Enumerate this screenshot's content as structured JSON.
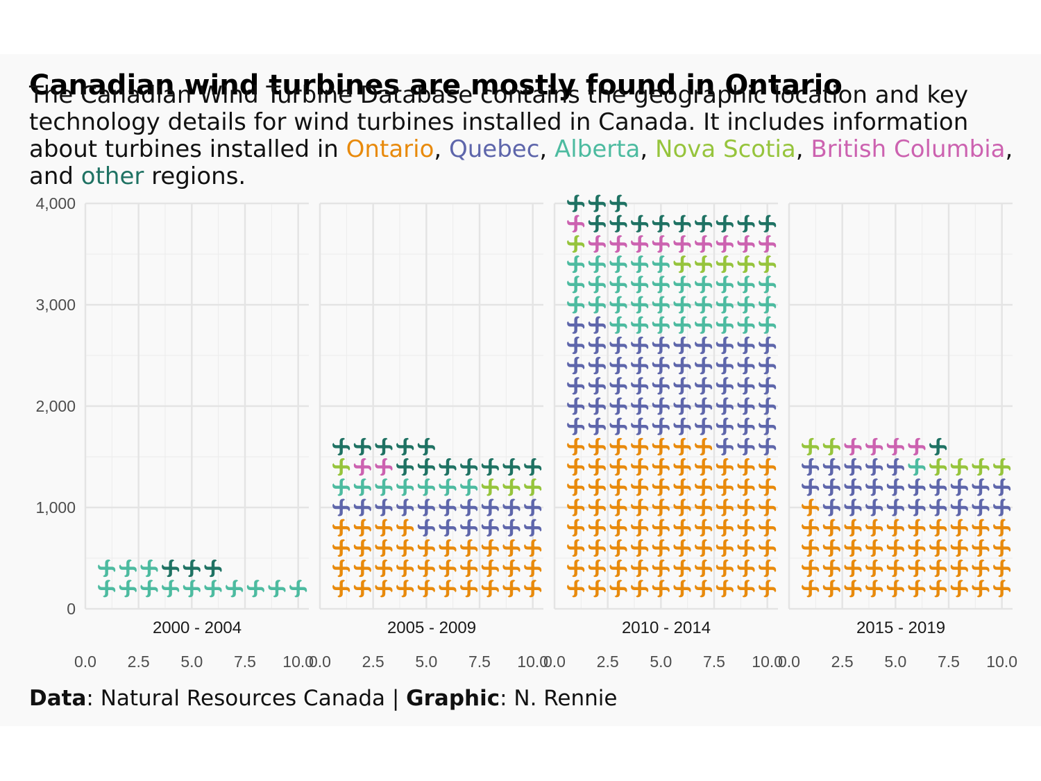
{
  "title": "Canadian wind turbines are mostly found in Ontario",
  "subtitle": {
    "intro": "The Canadian Wind Turbine Database contains the geographic location and key technology details for wind turbines installed in Canada. It includes information about turbines installed in ",
    "regions": [
      {
        "name": "Ontario",
        "color": "#E88A0C"
      },
      {
        "name": "Quebec",
        "color": "#5E66AB"
      },
      {
        "name": "Alberta",
        "color": "#4DBBA0"
      },
      {
        "name": "Nova Scotia",
        "color": "#96C43C"
      },
      {
        "name": "British Columbia",
        "color": "#CC62B0"
      },
      {
        "name": "other",
        "color": "#1F7263"
      }
    ],
    "sep_comma": ", ",
    "sep_and": ", and ",
    "outro": " regions."
  },
  "caption": {
    "data_label": "Data",
    "data_value": ": Natural Resources Canada | ",
    "graphic_label": "Graphic",
    "graphic_value": ": N. Rennie"
  },
  "chart_data": {
    "type": "waffle",
    "y_ticks": [
      "0",
      "1,000",
      "2,000",
      "3,000",
      "4,000"
    ],
    "ylim": [
      0,
      4000
    ],
    "x_ticks": [
      "0.0",
      "2.5",
      "5.0",
      "7.5",
      "10.0"
    ],
    "xlim": [
      0,
      10.5
    ],
    "units_per_icon": 200,
    "icons_per_row": 10,
    "facets": [
      {
        "label": "2000 - 2004",
        "counts": {
          "Ontario": 0,
          "Quebec": 0,
          "Alberta": 13,
          "Nova Scotia": 0,
          "British Columbia": 0,
          "other": 3
        }
      },
      {
        "label": "2005 - 2009",
        "counts": {
          "Ontario": 34,
          "Quebec": 16,
          "Alberta": 7,
          "Nova Scotia": 4,
          "British Columbia": 2,
          "other": 12
        }
      },
      {
        "label": "2010 - 2014",
        "counts": {
          "Ontario": 77,
          "Quebec": 55,
          "Alberta": 33,
          "Nova Scotia": 6,
          "British Columbia": 10,
          "other": 12
        }
      },
      {
        "label": "2015 - 2019",
        "counts": {
          "Ontario": 41,
          "Quebec": 24,
          "Alberta": 1,
          "Nova Scotia": 6,
          "British Columbia": 4,
          "other": 1
        }
      }
    ]
  }
}
